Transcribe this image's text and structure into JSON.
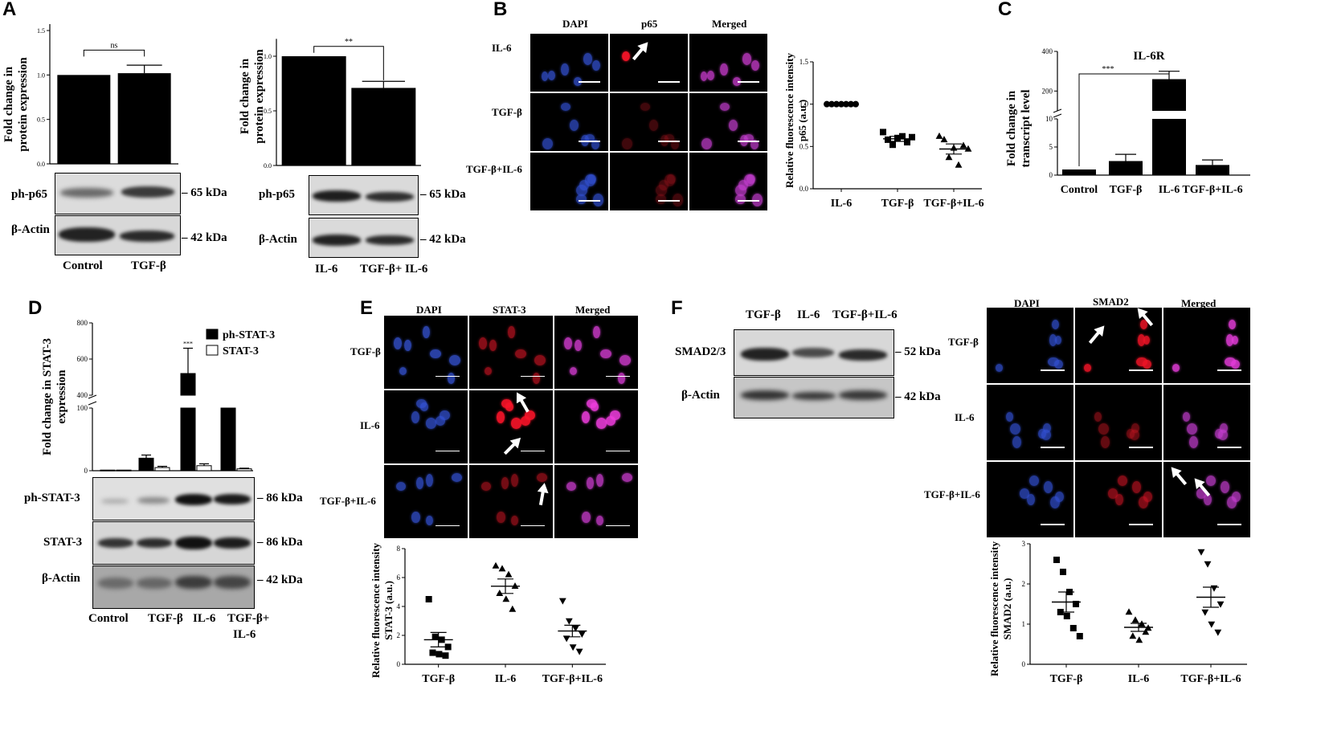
{
  "panels": {
    "A": {
      "letter": "A",
      "chart1": {
        "ylabel": "Fold change in protein expression",
        "ticks": [
          "0.0",
          "0.5",
          "1.0",
          "1.5"
        ],
        "sig": "ns"
      },
      "chart2": {
        "ylabel": "Fold change in protein expression",
        "ticks": [
          "0.0",
          "0.5",
          "1.0"
        ],
        "sig": "**"
      },
      "blot1": {
        "rows": [
          "ph-p65",
          "β-Actin"
        ],
        "kda": [
          "65 kDa",
          "42 kDa"
        ],
        "lanes": [
          "Control",
          "TGF-β"
        ]
      },
      "blot2": {
        "rows": [
          "ph-p65",
          "β-Actin"
        ],
        "kda": [
          "65 kDa",
          "42 kDa"
        ],
        "lanes": [
          "IL-6",
          "TGF-β+ IL-6"
        ]
      }
    },
    "B": {
      "letter": "B",
      "cols": [
        "DAPI",
        "p65",
        "Merged"
      ],
      "rows": [
        "IL-6",
        "TGF-β",
        "TGF-β+IL-6"
      ],
      "ylabel_line1": "Relative fluorescence intensity",
      "ylabel_line2": "p65 (a.u.)",
      "ticks": [
        "0.0",
        "0.5",
        "1.0",
        "1.5"
      ],
      "categories": [
        "IL-6",
        "TGF-β",
        "TGF-β+IL-6"
      ]
    },
    "C": {
      "letter": "C",
      "title": "IL-6R",
      "ylabel_line1": "Fold change in",
      "ylabel_line2": "transcript level",
      "ticks": [
        "0",
        "5",
        "10",
        "200",
        "400"
      ],
      "sig": "***",
      "categories": [
        "Control",
        "TGF-β",
        "IL-6",
        "TGF-β+IL-6"
      ]
    },
    "D": {
      "letter": "D",
      "ylabel_line1": "Fold change in STAT-3",
      "ylabel_line2": "expression",
      "ticks": [
        "0",
        "100",
        "400",
        "600",
        "800"
      ],
      "legend": [
        "ph-STAT-3",
        "STAT-3"
      ],
      "sig": [
        "***",
        "***"
      ],
      "rows": [
        "ph-STAT-3",
        "STAT-3",
        "β-Actin"
      ],
      "kda": [
        "86 kDa",
        "86 kDa",
        "42 kDa"
      ],
      "lanes": [
        "Control",
        "TGF-β",
        "IL-6",
        "TGF-β+",
        "IL-6"
      ]
    },
    "E": {
      "letter": "E",
      "cols": [
        "DAPI",
        "STAT-3",
        "Merged"
      ],
      "rows": [
        "TGF-β",
        "IL-6",
        "TGF-β+IL-6"
      ],
      "ylabel_line1": "Relative fluorescence intensity",
      "ylabel_line2": "STAT-3 (a.u.)",
      "ticks": [
        "0",
        "2",
        "4",
        "6",
        "8"
      ],
      "categories": [
        "TGF-β",
        "IL-6",
        "TGF-β+IL-6"
      ]
    },
    "F": {
      "letter": "F",
      "blot_lanes": [
        "TGF-β",
        "IL-6",
        "TGF-β+IL-6"
      ],
      "rows": [
        "SMAD2/3",
        "β-Actin"
      ],
      "kda": [
        "52 kDa",
        "42 kDa"
      ],
      "cols": [
        "DAPI",
        "SMAD2",
        "Merged"
      ],
      "micro_rows": [
        "TGF-β",
        "IL-6",
        "TGF-β+IL-6"
      ],
      "ylabel_line1": "Relative fluorescence intensity",
      "ylabel_line2": "SMAD2 (a.u.)",
      "ticks": [
        "0",
        "1",
        "2",
        "3"
      ],
      "categories": [
        "TGF-β",
        "IL-6",
        "TGF-β+IL-6"
      ]
    }
  },
  "chart_data": [
    {
      "id": "A1",
      "type": "bar",
      "categories": [
        "Control",
        "TGF-β"
      ],
      "values": [
        1.0,
        1.02
      ],
      "errors": [
        0,
        0.09
      ],
      "ylim": [
        0,
        1.5
      ]
    },
    {
      "id": "A2",
      "type": "bar",
      "categories": [
        "IL-6",
        "TGF-β+ IL-6"
      ],
      "values": [
        1.0,
        0.71
      ],
      "errors": [
        0,
        0.06
      ],
      "ylim": [
        0,
        1.1
      ]
    },
    {
      "id": "B",
      "type": "scatter",
      "categories": [
        "IL-6",
        "TGF-β",
        "TGF-β+IL-6"
      ],
      "points": [
        [
          1,
          1,
          1,
          1,
          1,
          1,
          1
        ],
        [
          0.67,
          0.58,
          0.52,
          0.6,
          0.62,
          0.55,
          0.61
        ],
        [
          0.62,
          0.58,
          0.37,
          0.48,
          0.28,
          0.51,
          0.47
        ]
      ],
      "means": [
        1.0,
        0.59,
        0.47
      ],
      "sem": [
        0,
        0.03,
        0.06
      ],
      "ylim": [
        0,
        1.5
      ]
    },
    {
      "id": "C",
      "type": "bar",
      "categories": [
        "Control",
        "TGF-β",
        "IL-6",
        "TGF-β+IL-6"
      ],
      "values": [
        1,
        2.5,
        260,
        1.8
      ],
      "errors": [
        0,
        1.2,
        40,
        0.9
      ]
    },
    {
      "id": "D",
      "type": "bar",
      "categories": [
        "Control",
        "TGF-β",
        "IL-6",
        "TGF-β+IL-6"
      ],
      "series": [
        {
          "name": "ph-STAT-3",
          "values": [
            1,
            20,
            520,
            100
          ]
        },
        {
          "name": "STAT-3",
          "values": [
            1,
            5,
            8,
            3
          ]
        }
      ],
      "errors": [
        [
          0,
          5,
          140,
          2
        ],
        [
          0,
          2,
          3,
          1
        ]
      ]
    },
    {
      "id": "E",
      "type": "scatter",
      "categories": [
        "TGF-β",
        "IL-6",
        "TGF-β+IL-6"
      ],
      "points": [
        [
          4.5,
          1.9,
          1.7,
          1.2,
          0.8,
          0.7,
          0.6
        ],
        [
          6.8,
          6.6,
          6.2,
          5.4,
          4.9,
          4.5,
          3.8
        ],
        [
          4.4,
          3.0,
          2.5,
          2.1,
          1.8,
          1.2,
          0.9
        ]
      ],
      "means": [
        1.7,
        5.4,
        2.3
      ],
      "sem": [
        0.5,
        0.5,
        0.4
      ],
      "ylim": [
        0,
        8
      ]
    },
    {
      "id": "F",
      "type": "scatter",
      "categories": [
        "TGF-β",
        "IL-6",
        "TGF-β+IL-6"
      ],
      "points": [
        [
          2.6,
          2.3,
          1.8,
          1.5,
          1.3,
          1.2,
          0.9,
          0.7
        ],
        [
          1.3,
          1.1,
          1.0,
          0.9,
          0.7,
          0.6,
          0.8
        ],
        [
          2.8,
          2.5,
          1.9,
          1.5,
          1.3,
          1.0,
          0.8
        ]
      ],
      "means": [
        1.55,
        0.92,
        1.67
      ],
      "sem": [
        0.25,
        0.1,
        0.25
      ],
      "ylim": [
        0,
        3
      ]
    }
  ]
}
